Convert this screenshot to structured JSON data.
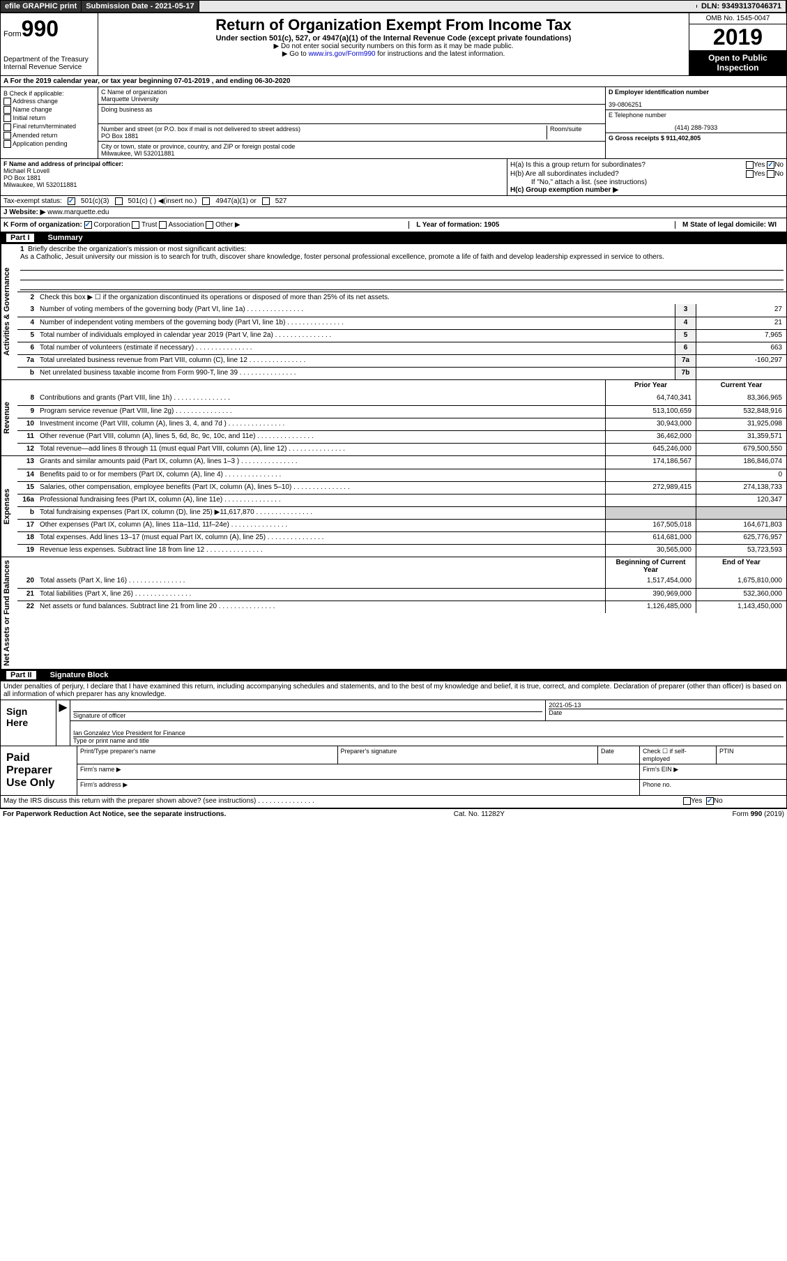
{
  "topbar": {
    "efile": "efile GRAPHIC print",
    "sub_label": "Submission Date - 2021-05-17",
    "dln_label": "DLN: 93493137046371"
  },
  "header": {
    "form_prefix": "Form",
    "form_num": "990",
    "dept1": "Department of the Treasury",
    "dept2": "Internal Revenue Service",
    "title": "Return of Organization Exempt From Income Tax",
    "subtitle": "Under section 501(c), 527, or 4947(a)(1) of the Internal Revenue Code (except private foundations)",
    "note1": "▶ Do not enter social security numbers on this form as it may be made public.",
    "note2_pre": "▶ Go to ",
    "note2_link": "www.irs.gov/Form990",
    "note2_post": " for instructions and the latest information.",
    "omb": "OMB No. 1545-0047",
    "year": "2019",
    "inspect1": "Open to Public",
    "inspect2": "Inspection"
  },
  "rowA": "A For the 2019 calendar year, or tax year beginning 07-01-2019    , and ending 06-30-2020",
  "colB": {
    "hdr": "B Check if applicable:",
    "c1": "Address change",
    "c2": "Name change",
    "c3": "Initial return",
    "c4": "Final return/terminated",
    "c5": "Amended return",
    "c6": "Application pending"
  },
  "colC": {
    "name_lbl": "C Name of organization",
    "name": "Marquette University",
    "dba_lbl": "Doing business as",
    "addr_lbl": "Number and street (or P.O. box if mail is not delivered to street address)",
    "room_lbl": "Room/suite",
    "addr": "PO Box 1881",
    "city_lbl": "City or town, state or province, country, and ZIP or foreign postal code",
    "city": "Milwaukee, WI  532011881"
  },
  "colD": {
    "ein_lbl": "D Employer identification number",
    "ein": "39-0806251",
    "tel_lbl": "E Telephone number",
    "tel": "(414) 288-7933",
    "gross_lbl": "G Gross receipts $ 911,402,805"
  },
  "colF": {
    "lbl": "F  Name and address of principal officer:",
    "name": "Michael R Lovell",
    "addr1": "PO Box 1881",
    "addr2": "Milwaukee, WI  532011881"
  },
  "colH": {
    "ha_lbl": "H(a)  Is this a group return for subordinates?",
    "hb_lbl": "H(b)  Are all subordinates included?",
    "hb_note": "If \"No,\" attach a list. (see instructions)",
    "hc_lbl": "H(c)  Group exemption number ▶",
    "yes": "Yes",
    "no": "No"
  },
  "tax": {
    "lbl": "Tax-exempt status:",
    "o1": "501(c)(3)",
    "o2": "501(c) (   ) ◀(insert no.)",
    "o3": "4947(a)(1) or",
    "o4": "527"
  },
  "rowJ": {
    "lbl": "J  Website: ▶",
    "val": "www.marquette.edu"
  },
  "rowK": {
    "lbl": "K Form of organization:",
    "o1": "Corporation",
    "o2": "Trust",
    "o3": "Association",
    "o4": "Other ▶",
    "L": "L Year of formation: 1905",
    "M": "M State of legal domicile: WI"
  },
  "part1": {
    "num": "Part I",
    "title": "Summary"
  },
  "vtabs": {
    "ag": "Activities & Governance",
    "rev": "Revenue",
    "exp": "Expenses",
    "net": "Net Assets or Fund Balances"
  },
  "l1": {
    "text": "Briefly describe the organization's mission or most significant activities:",
    "mission": "As a Catholic, Jesuit university our mission is to search for truth, discover share knowledge, foster personal professional excellence, promote a life of faith and develop leadership expressed in service to others."
  },
  "l2": "Check this box ▶ ☐  if the organization discontinued its operations or disposed of more than 25% of its net assets.",
  "lines_ag": [
    {
      "n": "3",
      "t": "Number of voting members of the governing body (Part VI, line 1a)",
      "b": "3",
      "v": "27"
    },
    {
      "n": "4",
      "t": "Number of independent voting members of the governing body (Part VI, line 1b)",
      "b": "4",
      "v": "21"
    },
    {
      "n": "5",
      "t": "Total number of individuals employed in calendar year 2019 (Part V, line 2a)",
      "b": "5",
      "v": "7,965"
    },
    {
      "n": "6",
      "t": "Total number of volunteers (estimate if necessary)",
      "b": "6",
      "v": "663"
    },
    {
      "n": "7a",
      "t": "Total unrelated business revenue from Part VIII, column (C), line 12",
      "b": "7a",
      "v": "-160,297"
    },
    {
      "n": "b",
      "t": "Net unrelated business taxable income from Form 990-T, line 39",
      "b": "7b",
      "v": ""
    }
  ],
  "colhdr": {
    "prior": "Prior Year",
    "curr": "Current Year"
  },
  "lines_rev": [
    {
      "n": "8",
      "t": "Contributions and grants (Part VIII, line 1h)",
      "p": "64,740,341",
      "c": "83,366,965"
    },
    {
      "n": "9",
      "t": "Program service revenue (Part VIII, line 2g)",
      "p": "513,100,659",
      "c": "532,848,916"
    },
    {
      "n": "10",
      "t": "Investment income (Part VIII, column (A), lines 3, 4, and 7d )",
      "p": "30,943,000",
      "c": "31,925,098"
    },
    {
      "n": "11",
      "t": "Other revenue (Part VIII, column (A), lines 5, 6d, 8c, 9c, 10c, and 11e)",
      "p": "36,462,000",
      "c": "31,359,571"
    },
    {
      "n": "12",
      "t": "Total revenue—add lines 8 through 11 (must equal Part VIII, column (A), line 12)",
      "p": "645,246,000",
      "c": "679,500,550"
    }
  ],
  "lines_exp": [
    {
      "n": "13",
      "t": "Grants and similar amounts paid (Part IX, column (A), lines 1–3 )",
      "p": "174,186,567",
      "c": "186,846,074"
    },
    {
      "n": "14",
      "t": "Benefits paid to or for members (Part IX, column (A), line 4)",
      "p": "",
      "c": "0"
    },
    {
      "n": "15",
      "t": "Salaries, other compensation, employee benefits (Part IX, column (A), lines 5–10)",
      "p": "272,989,415",
      "c": "274,138,733"
    },
    {
      "n": "16a",
      "t": "Professional fundraising fees (Part IX, column (A), line 11e)",
      "p": "",
      "c": "120,347"
    },
    {
      "n": "b",
      "t": "Total fundraising expenses (Part IX, column (D), line 25) ▶11,617,870",
      "p": "shade",
      "c": "shade"
    },
    {
      "n": "17",
      "t": "Other expenses (Part IX, column (A), lines 11a–11d, 11f–24e)",
      "p": "167,505,018",
      "c": "164,671,803"
    },
    {
      "n": "18",
      "t": "Total expenses. Add lines 13–17 (must equal Part IX, column (A), line 25)",
      "p": "614,681,000",
      "c": "625,776,957"
    },
    {
      "n": "19",
      "t": "Revenue less expenses. Subtract line 18 from line 12",
      "p": "30,565,000",
      "c": "53,723,593"
    }
  ],
  "colhdr2": {
    "beg": "Beginning of Current Year",
    "end": "End of Year"
  },
  "lines_net": [
    {
      "n": "20",
      "t": "Total assets (Part X, line 16)",
      "p": "1,517,454,000",
      "c": "1,675,810,000"
    },
    {
      "n": "21",
      "t": "Total liabilities (Part X, line 26)",
      "p": "390,969,000",
      "c": "532,360,000"
    },
    {
      "n": "22",
      "t": "Net assets or fund balances. Subtract line 21 from line 20",
      "p": "1,126,485,000",
      "c": "1,143,450,000"
    }
  ],
  "part2": {
    "num": "Part II",
    "title": "Signature Block"
  },
  "sig": {
    "decl": "Under penalties of perjury, I declare that I have examined this return, including accompanying schedules and statements, and to the best of my knowledge and belief, it is true, correct, and complete. Declaration of preparer (other than officer) is based on all information of which preparer has any knowledge.",
    "here": "Sign Here",
    "date": "2021-05-13",
    "sig_lbl": "Signature of officer",
    "date_lbl": "Date",
    "name": "Ian Gonzalez  Vice President for Finance",
    "name_lbl": "Type or print name and title"
  },
  "prep": {
    "lbl": "Paid Preparer Use Only",
    "h1": "Print/Type preparer's name",
    "h2": "Preparer's signature",
    "h3": "Date",
    "h4": "Check ☐ if self-employed",
    "h5": "PTIN",
    "firm_name": "Firm's name    ▶",
    "firm_ein": "Firm's EIN ▶",
    "firm_addr": "Firm's address ▶",
    "phone": "Phone no."
  },
  "footer": {
    "discuss": "May the IRS discuss this return with the preparer shown above? (see instructions)",
    "yes": "Yes",
    "no": "No",
    "paperwork": "For Paperwork Reduction Act Notice, see the separate instructions.",
    "cat": "Cat. No. 11282Y",
    "form": "Form 990 (2019)"
  }
}
